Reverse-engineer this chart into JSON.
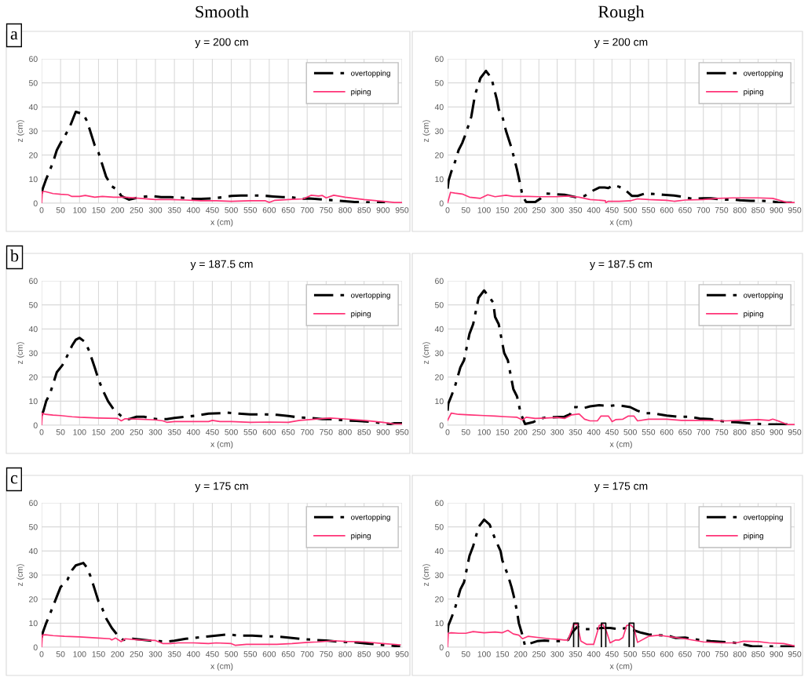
{
  "chart_data": [
    {
      "type": "line",
      "title": "y = 200 cm",
      "xlabel": "x (cm)",
      "ylabel": "z (cm)",
      "annotations": [
        "Smooth",
        "a"
      ],
      "xlim": [
        0,
        950
      ],
      "ylim": [
        0,
        60
      ],
      "xticks": [
        0,
        50,
        100,
        150,
        200,
        250,
        300,
        350,
        400,
        450,
        500,
        550,
        600,
        650,
        700,
        750,
        800,
        850,
        900,
        950
      ],
      "yticks": [
        0,
        10,
        20,
        30,
        40,
        50,
        60
      ],
      "grid": true,
      "legend": "top right",
      "series": [
        {
          "name": "overtopping",
          "color": "#000000",
          "line_style": "dashdot",
          "x": [
            0,
            3,
            12,
            20,
            30,
            40,
            50,
            65,
            75,
            90,
            110,
            120,
            140,
            150,
            158,
            170,
            185,
            200,
            210,
            230,
            260,
            290,
            315,
            340,
            370,
            400,
            420,
            450,
            480,
            500,
            525,
            550,
            580,
            610,
            635,
            655,
            690,
            700,
            720,
            745,
            770,
            800,
            825,
            850,
            875,
            905
          ],
          "values": [
            4,
            6,
            10,
            13,
            17,
            22,
            25,
            29,
            32,
            38,
            37,
            34,
            24,
            21,
            17,
            11,
            7,
            5.5,
            3,
            1.5,
            2.5,
            3,
            2.5,
            2.5,
            2.3,
            1.8,
            1.8,
            2,
            2.5,
            3,
            3.2,
            3.2,
            3.2,
            2.8,
            2.5,
            2.5,
            1.8,
            2,
            1.8,
            1.5,
            1.2,
            0.8,
            0.5,
            0.5,
            0.2,
            0.2
          ]
        },
        {
          "name": "piping",
          "color": "#ff3377",
          "line_style": "solid",
          "x": [
            0,
            2,
            10,
            30,
            50,
            70,
            80,
            100,
            115,
            140,
            160,
            190,
            220,
            260,
            300,
            340,
            380,
            420,
            460,
            500,
            550,
            590,
            600,
            615,
            650,
            690,
            710,
            730,
            740,
            750,
            770,
            800,
            850,
            900,
            930,
            950
          ],
          "values": [
            0,
            4.8,
            4.8,
            4,
            3.7,
            3.5,
            2.8,
            2.8,
            3.2,
            2.5,
            2.8,
            2.5,
            2.5,
            2,
            1.5,
            1.5,
            1.3,
            1,
            1,
            0.8,
            1,
            1,
            0.3,
            1.2,
            1.5,
            1.8,
            3.3,
            3,
            3.2,
            2.2,
            3.3,
            2.5,
            1.5,
            0.8,
            0.3,
            0.3
          ]
        }
      ]
    },
    {
      "type": "line",
      "title": "y = 200 cm",
      "xlabel": "x (cm)",
      "ylabel": "z (cm)",
      "annotations": [
        "Rough"
      ],
      "xlim": [
        0,
        950
      ],
      "ylim": [
        0,
        60
      ],
      "xticks": [
        0,
        50,
        100,
        150,
        200,
        250,
        300,
        350,
        400,
        450,
        500,
        550,
        600,
        650,
        700,
        750,
        800,
        850,
        900,
        950
      ],
      "yticks": [
        0,
        10,
        20,
        30,
        40,
        50,
        60
      ],
      "grid": true,
      "legend": "top right",
      "series": [
        {
          "name": "overtopping",
          "color": "#000000",
          "line_style": "dashdot",
          "x": [
            0,
            3,
            10,
            20,
            30,
            40,
            50,
            65,
            75,
            90,
            105,
            120,
            135,
            140,
            150,
            160,
            175,
            180,
            190,
            200,
            205,
            215,
            240,
            255,
            270,
            290,
            320,
            350,
            375,
            395,
            415,
            430,
            440,
            455,
            470,
            490,
            505,
            520,
            540,
            565,
            590,
            620,
            650,
            670,
            700,
            720,
            760,
            780,
            800,
            830,
            860,
            885,
            905,
            950
          ],
          "values": [
            6,
            9.5,
            13,
            17,
            22,
            25,
            29,
            36,
            45,
            52,
            55,
            52,
            43,
            39,
            36,
            30,
            23,
            20,
            14,
            7,
            3,
            0.5,
            0.5,
            2,
            4,
            3.8,
            3.5,
            2.5,
            3,
            5,
            6.5,
            6.5,
            6.3,
            7.5,
            6.8,
            5,
            3,
            3,
            4,
            3.8,
            3.5,
            3.2,
            2.5,
            1.8,
            2,
            2,
            1.5,
            1.5,
            1.2,
            1,
            1,
            0.8,
            0.3,
            0.2
          ]
        },
        {
          "name": "piping",
          "color": "#ff3377",
          "line_style": "solid",
          "x": [
            0,
            8,
            20,
            40,
            60,
            90,
            110,
            130,
            160,
            180,
            220,
            250,
            300,
            330,
            360,
            390,
            420,
            432,
            433,
            440,
            470,
            500,
            520,
            550,
            600,
            620,
            650,
            700,
            740,
            780,
            850,
            890,
            930,
            950
          ],
          "values": [
            0,
            4.5,
            4.2,
            3.8,
            2.5,
            2,
            3.5,
            2.7,
            3.3,
            2.8,
            2.8,
            2.7,
            2.7,
            3,
            2.5,
            1.5,
            1.2,
            1,
            0.2,
            0.8,
            0.8,
            1,
            1.8,
            1.5,
            1.2,
            0.8,
            1.3,
            1.5,
            2,
            2.2,
            2.2,
            2,
            0.3,
            0.3
          ]
        }
      ]
    },
    {
      "type": "line",
      "title": "y = 187.5 cm",
      "xlabel": "x (cm)",
      "ylabel": "z (cm)",
      "annotations": [
        "b"
      ],
      "xlim": [
        0,
        950
      ],
      "ylim": [
        0,
        60
      ],
      "xticks": [
        0,
        50,
        100,
        150,
        200,
        250,
        300,
        350,
        400,
        450,
        500,
        550,
        600,
        650,
        700,
        750,
        800,
        850,
        900,
        950
      ],
      "yticks": [
        0,
        10,
        20,
        30,
        40,
        50,
        60
      ],
      "grid": true,
      "legend": "top right",
      "series": [
        {
          "name": "overtopping",
          "color": "#000000",
          "line_style": "dashdot",
          "x": [
            0,
            5,
            12,
            22,
            30,
            40,
            55,
            65,
            80,
            90,
            100,
            115,
            125,
            140,
            150,
            160,
            175,
            190,
            210,
            230,
            250,
            270,
            290,
            310,
            330,
            350,
            380,
            410,
            440,
            470,
            490,
            520,
            550,
            590,
            620,
            650,
            680,
            710,
            740,
            760,
            800,
            830,
            860,
            880,
            900,
            920,
            930,
            950
          ],
          "values": [
            4,
            6,
            10,
            13,
            17,
            22,
            25,
            28,
            33,
            35.5,
            36.3,
            34.5,
            31,
            24,
            19,
            15,
            10,
            6.5,
            3.8,
            2.5,
            3.5,
            3.5,
            2.7,
            2.5,
            2.5,
            3,
            3.5,
            4,
            4.8,
            5,
            5.2,
            4.8,
            4.5,
            4.5,
            4.3,
            3.8,
            3.2,
            3,
            2.5,
            2.5,
            2,
            1.8,
            1.5,
            1.2,
            0.8,
            0.5,
            0.8,
            0.8
          ]
        },
        {
          "name": "piping",
          "color": "#ff3377",
          "line_style": "solid",
          "x": [
            0,
            2,
            10,
            30,
            50,
            80,
            100,
            150,
            200,
            210,
            220,
            260,
            300,
            320,
            330,
            350,
            400,
            440,
            450,
            470,
            500,
            550,
            600,
            650,
            680,
            720,
            760,
            790,
            850,
            900,
            930,
            950
          ],
          "values": [
            0,
            5,
            4.5,
            4.2,
            4,
            3.5,
            3.3,
            3,
            2.8,
            1.8,
            2.7,
            2.5,
            2.2,
            1.8,
            1.2,
            1.5,
            1.5,
            1.5,
            2,
            1.5,
            1.5,
            1.2,
            1.3,
            1.2,
            2,
            2.5,
            3,
            2.7,
            2,
            1.2,
            0.5,
            0.5
          ]
        }
      ]
    },
    {
      "type": "line",
      "title": "y = 187.5 cm",
      "xlabel": "x (cm)",
      "ylabel": "z (cm)",
      "xlim": [
        0,
        950
      ],
      "ylim": [
        0,
        60
      ],
      "xticks": [
        0,
        50,
        100,
        150,
        200,
        250,
        300,
        350,
        400,
        450,
        500,
        550,
        600,
        650,
        700,
        750,
        800,
        850,
        900,
        950
      ],
      "yticks": [
        0,
        10,
        20,
        30,
        40,
        50,
        60
      ],
      "grid": true,
      "legend": "top right",
      "series": [
        {
          "name": "overtopping",
          "color": "#000000",
          "line_style": "dashdot",
          "x": [
            0,
            2,
            10,
            20,
            35,
            45,
            60,
            70,
            85,
            100,
            110,
            125,
            130,
            140,
            155,
            165,
            180,
            190,
            200,
            212,
            235,
            250,
            270,
            290,
            320,
            335,
            345,
            355,
            370,
            390,
            415,
            445,
            460,
            480,
            500,
            520,
            540,
            560,
            580,
            600,
            630,
            660,
            690,
            720,
            740,
            760,
            790,
            830,
            860,
            880,
            900,
            930,
            950
          ],
          "values": [
            6,
            9,
            12,
            16,
            24,
            27,
            38,
            42,
            53,
            56,
            54,
            51,
            45,
            42,
            30,
            27,
            15,
            12,
            5,
            0.5,
            1.3,
            2.5,
            3.3,
            3.3,
            3.5,
            4.5,
            7.5,
            7.5,
            7,
            7.8,
            8.3,
            8,
            8.3,
            8,
            7.5,
            6,
            5,
            5,
            4.5,
            4,
            3.5,
            3.5,
            2.8,
            2.5,
            2,
            1.5,
            1.2,
            0.7,
            0.5,
            0.3,
            0.3,
            0.3,
            0.2
          ]
        },
        {
          "name": "piping",
          "color": "#ff3377",
          "line_style": "solid",
          "x": [
            0,
            10,
            30,
            60,
            100,
            130,
            160,
            190,
            205,
            215,
            240,
            270,
            300,
            320,
            340,
            360,
            375,
            390,
            410,
            420,
            440,
            445,
            450,
            460,
            480,
            495,
            510,
            520,
            550,
            600,
            640,
            700,
            760,
            800,
            850,
            880,
            890,
            910,
            930,
            950
          ],
          "values": [
            2,
            5,
            4.5,
            4.3,
            4,
            3.8,
            3.5,
            3.3,
            2.2,
            3.3,
            2.8,
            3,
            3.2,
            2.8,
            4.3,
            4.7,
            2.5,
            1.8,
            1.8,
            3.8,
            3.8,
            2.8,
            1.5,
            2.3,
            2.5,
            3.8,
            3.8,
            1.8,
            2.5,
            2.5,
            2,
            2,
            1.8,
            2,
            2.3,
            2,
            2.5,
            1.5,
            0.3,
            0.3
          ]
        }
      ]
    },
    {
      "type": "line",
      "title": "y = 175 cm",
      "xlabel": "x (cm)",
      "ylabel": "z (cm)",
      "annotations": [
        "c"
      ],
      "xlim": [
        0,
        950
      ],
      "ylim": [
        0,
        60
      ],
      "xticks": [
        0,
        50,
        100,
        150,
        200,
        250,
        300,
        350,
        400,
        450,
        500,
        550,
        600,
        650,
        700,
        750,
        800,
        850,
        900,
        950
      ],
      "yticks": [
        0,
        10,
        20,
        30,
        40,
        50,
        60
      ],
      "grid": true,
      "legend": "top right",
      "series": [
        {
          "name": "overtopping",
          "color": "#000000",
          "line_style": "dashdot",
          "x": [
            0,
            3,
            12,
            20,
            30,
            40,
            50,
            68,
            80,
            90,
            110,
            120,
            130,
            140,
            150,
            160,
            170,
            185,
            200,
            215,
            240,
            260,
            290,
            310,
            330,
            350,
            380,
            410,
            440,
            470,
            490,
            510,
            530,
            555,
            590,
            620,
            650,
            680,
            720,
            750,
            790,
            830,
            860,
            880,
            910,
            945
          ],
          "values": [
            4,
            6,
            10,
            13,
            17,
            21,
            25,
            28,
            32,
            34,
            35,
            33,
            29,
            24,
            19,
            16,
            12,
            8,
            5,
            3,
            3.5,
            3.2,
            2.7,
            2.5,
            2.3,
            2.7,
            3.5,
            4,
            4.5,
            5,
            5.3,
            5,
            4.8,
            4.8,
            4.5,
            4.5,
            4,
            3.5,
            3,
            2.8,
            2.2,
            2,
            1.5,
            1.2,
            0.8,
            0.3
          ]
        },
        {
          "name": "piping",
          "color": "#ff3377",
          "line_style": "solid",
          "x": [
            0,
            2,
            10,
            30,
            60,
            100,
            150,
            180,
            185,
            195,
            210,
            220,
            260,
            300,
            320,
            340,
            360,
            400,
            440,
            460,
            500,
            510,
            540,
            600,
            620,
            660,
            700,
            730,
            770,
            800,
            850,
            900,
            945
          ],
          "values": [
            0,
            5,
            5.2,
            4.8,
            4.5,
            4.3,
            3.8,
            3.5,
            3,
            3.8,
            2.3,
            3.5,
            3,
            2.8,
            1.5,
            1.5,
            1.8,
            1.8,
            1.5,
            1.8,
            1.5,
            0.8,
            1.2,
            1.2,
            1.2,
            1.5,
            2,
            2.2,
            2.7,
            2.4,
            2.2,
            1.5,
            1
          ]
        }
      ]
    },
    {
      "type": "line",
      "title": "y = 175 cm",
      "xlabel": "x (cm)",
      "ylabel": "z (cm)",
      "xlim": [
        0,
        950
      ],
      "ylim": [
        0,
        60
      ],
      "xticks": [
        0,
        50,
        100,
        150,
        200,
        250,
        300,
        350,
        400,
        450,
        500,
        550,
        600,
        650,
        700,
        750,
        800,
        850,
        900,
        950
      ],
      "yticks": [
        0,
        10,
        20,
        30,
        40,
        50,
        60
      ],
      "grid": true,
      "legend": "top right",
      "series": [
        {
          "name": "overtopping",
          "color": "#000000",
          "line_style": "dashdot",
          "x": [
            0,
            2,
            10,
            20,
            35,
            45,
            60,
            70,
            85,
            100,
            115,
            130,
            145,
            150,
            165,
            175,
            180,
            190,
            195,
            205,
            212,
            225,
            245,
            265,
            285,
            310,
            330,
            340,
            355,
            370,
            400,
            420,
            445,
            470,
            490,
            510,
            530,
            550,
            580,
            610,
            625,
            650,
            670,
            690,
            720,
            750,
            780,
            800,
            815,
            835,
            870,
            890,
            910,
            950
          ],
          "values": [
            6,
            9,
            12,
            16,
            24,
            27,
            38,
            42,
            50,
            53,
            51,
            45,
            40,
            36,
            30,
            25,
            22,
            15,
            10,
            5,
            0.5,
            1.5,
            2.5,
            2.8,
            2.5,
            2.5,
            3,
            6,
            8.5,
            7.5,
            7.5,
            8,
            8,
            7.5,
            8,
            7,
            6,
            5.3,
            5,
            4.5,
            3.8,
            4,
            3.5,
            3,
            2.5,
            2.2,
            2,
            1.5,
            1,
            0.3,
            0.3,
            0.3,
            0.3,
            0.3
          ]
        },
        {
          "name": "piping",
          "color": "#ff3377",
          "line_style": "solid",
          "x": [
            0,
            2,
            10,
            30,
            50,
            70,
            100,
            130,
            150,
            165,
            180,
            195,
            205,
            220,
            250,
            280,
            300,
            320,
            330,
            345,
            355,
            365,
            380,
            400,
            415,
            425,
            435,
            445,
            460,
            470,
            480,
            490,
            500,
            510,
            520,
            550,
            580,
            600,
            650,
            700,
            750,
            790,
            810,
            850,
            880,
            920,
            950
          ],
          "values": [
            0,
            5.8,
            6,
            5.8,
            5.8,
            6.5,
            6,
            6.3,
            6,
            7,
            5.5,
            5,
            3.5,
            4.5,
            4,
            3.5,
            3.3,
            3,
            3,
            9.5,
            9.5,
            2.5,
            1.2,
            1.2,
            9,
            9.5,
            6.5,
            1.8,
            3,
            3,
            4,
            9,
            9.3,
            8,
            2,
            4.5,
            5,
            4.5,
            3.5,
            2.2,
            1.8,
            1.8,
            2.5,
            2.3,
            1.8,
            1.5,
            0.5
          ]
        },
        {
          "color": "#000000",
          "line_style": "solid",
          "x": [
            345,
            345,
            358,
            358,
            null,
            421,
            421,
            433,
            433,
            null,
            497,
            497,
            510,
            510
          ],
          "values": [
            0,
            10,
            10,
            0,
            null,
            0,
            10,
            10,
            0,
            null,
            0,
            10,
            10,
            0
          ]
        }
      ]
    }
  ]
}
